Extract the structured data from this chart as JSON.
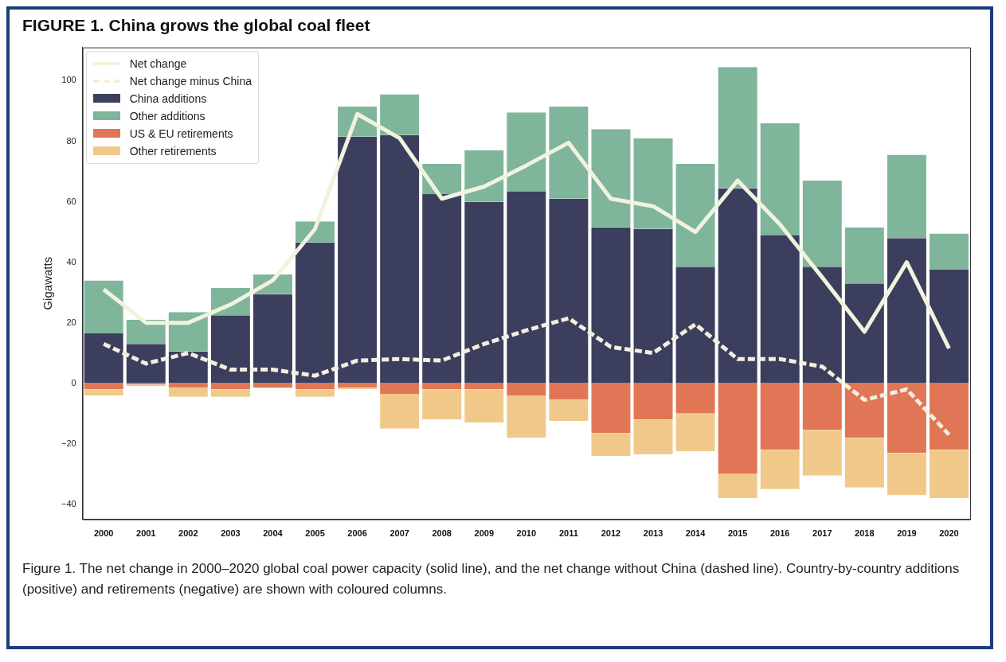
{
  "chart_data": {
    "type": "bar",
    "stacked": true,
    "title": "FIGURE 1. China grows the global coal fleet",
    "ylabel": "Gigawatts",
    "categories": [
      "2000",
      "2001",
      "2002",
      "2003",
      "2004",
      "2005",
      "2006",
      "2007",
      "2008",
      "2009",
      "2010",
      "2011",
      "2012",
      "2013",
      "2014",
      "2015",
      "2016",
      "2017",
      "2018",
      "2019",
      "2020"
    ],
    "series": [
      {
        "name": "Net change",
        "type": "line",
        "line_style": "solid",
        "color": "#f1f3de",
        "values": [
          31,
          20,
          20,
          26,
          34,
          51,
          89,
          81,
          61,
          65,
          72,
          79.5,
          61,
          58.5,
          50,
          67,
          52.5,
          35,
          17,
          40,
          11.5
        ]
      },
      {
        "name": "Net change minus China",
        "type": "line",
        "line_style": "dashed",
        "color": "#f3efdf",
        "values": [
          13,
          6.5,
          10,
          4.5,
          4.5,
          2.5,
          7.5,
          8,
          7.5,
          13,
          17.5,
          21.5,
          12,
          10,
          19.5,
          8,
          8,
          5.5,
          -5.5,
          -2,
          -17
        ]
      },
      {
        "name": "China additions",
        "color": "#3c3e5d",
        "values": [
          16.5,
          13,
          10.5,
          22.5,
          29.5,
          46.5,
          81.5,
          82,
          62.5,
          60,
          63.5,
          61,
          51.5,
          51,
          38.5,
          64.5,
          49,
          38.5,
          33,
          48,
          37.5
        ]
      },
      {
        "name": "Other additions",
        "color": "#7fb59b",
        "values": [
          17.5,
          8,
          13,
          9,
          6.5,
          7,
          10,
          13.5,
          10,
          17,
          26,
          30.5,
          32.5,
          30,
          34,
          40,
          37,
          28.5,
          18.5,
          27.5,
          12
        ]
      },
      {
        "name": "US & EU retirements",
        "color": "#e07656",
        "values": [
          -2,
          -0.5,
          -1.5,
          -2,
          -1.5,
          -2,
          -1.5,
          -3.5,
          -2,
          -2,
          -4,
          -5.5,
          -16.5,
          -12,
          -10,
          -30,
          -22,
          -15.5,
          -18,
          -23,
          -22
        ]
      },
      {
        "name": "Other retirements",
        "color": "#f0c98a",
        "values": [
          -2,
          -0.5,
          -3,
          -2.5,
          0,
          -2.5,
          -0.5,
          -11.5,
          -10,
          -11,
          -14,
          -7,
          -7.5,
          -11.5,
          -12.5,
          -8,
          -13,
          -15,
          -16.5,
          -14,
          -16
        ]
      }
    ],
    "ylim": [
      -45,
      111
    ],
    "yticks": [
      -40,
      -20,
      0,
      20,
      40,
      60,
      80,
      100
    ],
    "grid": false,
    "legend": "top left",
    "marker": "none",
    "annotations": [
      "Figure 1. The net change in  2000–2020 global coal power capacity (solid line), and the net change without China (dashed line). Country-by-country additions (positive) and retirements (negative) are shown with coloured columns."
    ]
  }
}
